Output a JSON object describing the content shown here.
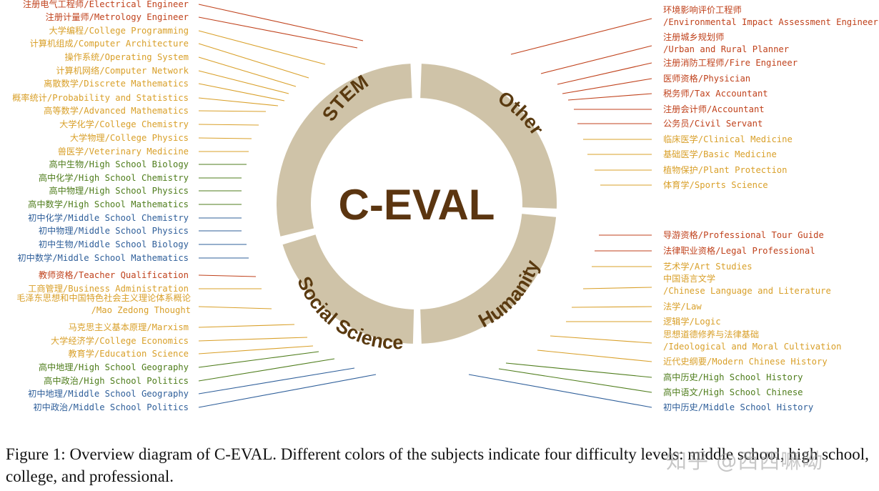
{
  "colors": {
    "middle": "#2f5f9a",
    "high": "#4f7d1c",
    "college": "#d9a02a",
    "professional": "#c0421c",
    "ring": "#cfc3a8",
    "ring_text": "#5a3a10",
    "center_text": "#5b3510"
  },
  "center_title": "C-EVAL",
  "sectors": [
    {
      "name": "STEM"
    },
    {
      "name": "Other"
    },
    {
      "name": "Humanity"
    },
    {
      "name": "Social Science"
    }
  ],
  "left_subjects": [
    {
      "text": "注册电气工程师/Electrical Engineer",
      "level": "professional"
    },
    {
      "text": "注册计量师/Metrology Engineer",
      "level": "professional"
    },
    {
      "text": "大学编程/College Programming",
      "level": "college"
    },
    {
      "text": "计算机组成/Computer Architecture",
      "level": "college"
    },
    {
      "text": "操作系统/Operating System",
      "level": "college"
    },
    {
      "text": "计算机网络/Computer Network",
      "level": "college"
    },
    {
      "text": "离散数学/Discrete Mathematics",
      "level": "college"
    },
    {
      "text": "概率统计/Probability and Statistics",
      "level": "college"
    },
    {
      "text": "高等数学/Advanced Mathematics",
      "level": "college"
    },
    {
      "text": "大学化学/College Chemistry",
      "level": "college"
    },
    {
      "text": "大学物理/College Physics",
      "level": "college"
    },
    {
      "text": "兽医学/Veterinary Medicine",
      "level": "college"
    },
    {
      "text": "高中生物/High School Biology",
      "level": "high"
    },
    {
      "text": "高中化学/High School Chemistry",
      "level": "high"
    },
    {
      "text": "高中物理/High School Physics",
      "level": "high"
    },
    {
      "text": "高中数学/High School Mathematics",
      "level": "high"
    },
    {
      "text": "初中化学/Middle School Chemistry",
      "level": "middle"
    },
    {
      "text": "初中物理/Middle School Physics",
      "level": "middle"
    },
    {
      "text": "初中生物/Middle School Biology",
      "level": "middle"
    },
    {
      "text": "初中数学/Middle School Mathematics",
      "level": "middle"
    },
    {
      "text": "教师资格/Teacher Qualification",
      "level": "professional"
    },
    {
      "text": "工商管理/Business Administration",
      "level": "college"
    },
    {
      "text": "毛泽东思想和中国特色社会主义理论体系概论",
      "text2": "/Mao Zedong Thought",
      "level": "college"
    },
    {
      "text": "马克思主义基本原理/Marxism",
      "level": "college"
    },
    {
      "text": "大学经济学/College Economics",
      "level": "college"
    },
    {
      "text": "教育学/Education Science",
      "level": "college"
    },
    {
      "text": "高中地理/High School Geography",
      "level": "high"
    },
    {
      "text": "高中政治/High School Politics",
      "level": "high"
    },
    {
      "text": "初中地理/Middle School Geography",
      "level": "middle"
    },
    {
      "text": "初中政治/Middle School Politics",
      "level": "middle"
    }
  ],
  "right_subjects": [
    {
      "text": "环境影响评价工程师",
      "text2": "/Environmental Impact Assessment Engineer",
      "level": "professional"
    },
    {
      "text": "注册城乡规划师",
      "text2": "/Urban and Rural Planner",
      "level": "professional"
    },
    {
      "text": "注册消防工程师/Fire Engineer",
      "level": "professional"
    },
    {
      "text": "医师资格/Physician",
      "level": "professional"
    },
    {
      "text": "税务师/Tax Accountant",
      "level": "professional"
    },
    {
      "text": "注册会计师/Accountant",
      "level": "professional"
    },
    {
      "text": "公务员/Civil Servant",
      "level": "professional"
    },
    {
      "text": "临床医学/Clinical Medicine",
      "level": "college"
    },
    {
      "text": "基础医学/Basic Medicine",
      "level": "college"
    },
    {
      "text": "植物保护/Plant Protection",
      "level": "college"
    },
    {
      "text": "体育学/Sports Science",
      "level": "college"
    },
    {
      "text": "导游资格/Professional Tour Guide",
      "level": "professional"
    },
    {
      "text": "法律职业资格/Legal Professional",
      "level": "professional"
    },
    {
      "text": "艺术学/Art Studies",
      "level": "college"
    },
    {
      "text": "中国语言文学",
      "text2": "/Chinese Language and Literature",
      "level": "college"
    },
    {
      "text": "法学/Law",
      "level": "college"
    },
    {
      "text": "逻辑学/Logic",
      "level": "college"
    },
    {
      "text": "思想道德修养与法律基础",
      "text2": "/Ideological and Moral Cultivation",
      "level": "college"
    },
    {
      "text": "近代史纲要/Modern Chinese History",
      "level": "college"
    },
    {
      "text": "高中历史/High School History",
      "level": "high"
    },
    {
      "text": "高中语文/High School Chinese",
      "level": "high"
    },
    {
      "text": "初中历史/Middle School History",
      "level": "middle"
    }
  ],
  "caption": "Figure 1: Overview diagram of C-EVAL. Different colors of the subjects indicate four difficulty levels: middle school, high school, college, and professional.",
  "watermark": "知乎 @西西嘛呦"
}
